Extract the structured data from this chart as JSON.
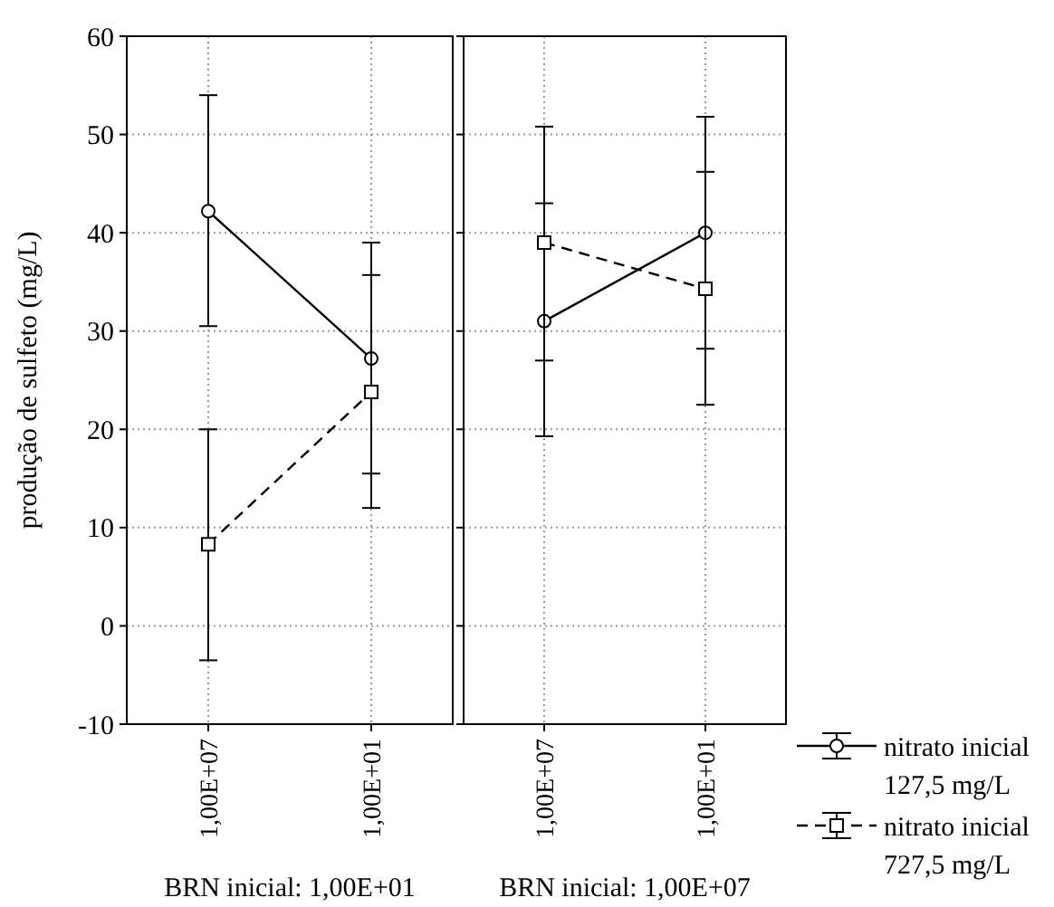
{
  "chart_data": [
    {
      "type": "line",
      "xlabel": "BRN inicial: 1,00E+01",
      "ylabel": "produção de sulfeto (mg/L)",
      "categories": [
        "1,00E+07",
        "1,00E+01"
      ],
      "ylim": [
        -10,
        60
      ],
      "yticks": [
        -10,
        0,
        10,
        20,
        30,
        40,
        50,
        60
      ],
      "grid": true,
      "series": [
        {
          "color": "#000000",
          "marker": "circle",
          "line_style": "solid",
          "values": [
            42.2,
            27.2
          ],
          "errors": [
            [
              30.5,
              54
            ],
            [
              15.5,
              39
            ]
          ]
        },
        {
          "color": "#000000",
          "marker": "square",
          "line_style": "dashed",
          "values": [
            8.3,
            23.8
          ],
          "errors": [
            [
              -3.5,
              20
            ],
            [
              12,
              35.7
            ]
          ]
        }
      ]
    },
    {
      "type": "line",
      "xlabel": "BRN inicial: 1,00E+07",
      "categories": [
        "1,00E+07",
        "1,00E+01"
      ],
      "ylim": [
        -10,
        60
      ],
      "yticks": [
        -10,
        0,
        10,
        20,
        30,
        40,
        50,
        60
      ],
      "tick_labels": "x",
      "grid": true,
      "legend": "right",
      "series": [
        {
          "name": "nitrato inicial 127,5 mg/L",
          "color": "#000000",
          "marker": "circle",
          "line_style": "solid",
          "values": [
            31,
            40
          ],
          "errors": [
            [
              19.3,
              43
            ],
            [
              28.2,
              51.8
            ]
          ]
        },
        {
          "name": "nitrato inicial 727,5 mg/L",
          "color": "#000000",
          "marker": "square",
          "line_style": "dashed",
          "values": [
            39,
            34.3
          ],
          "errors": [
            [
              27,
              50.8
            ],
            [
              22.5,
              46.2
            ]
          ]
        }
      ]
    }
  ]
}
